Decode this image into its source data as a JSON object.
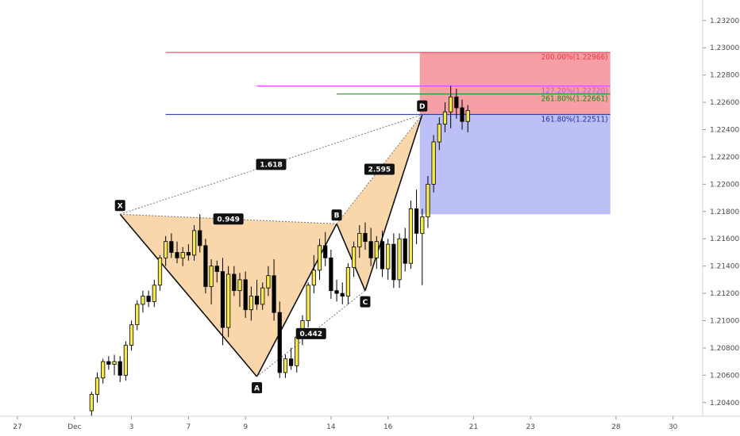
{
  "chart_data": {
    "type": "candlestick",
    "title": "",
    "y_axis": {
      "min": 1.203,
      "max": 1.2335,
      "ticks": [
        "1.23200",
        "1.23000",
        "1.22800",
        "1.22600",
        "1.22400",
        "1.22200",
        "1.22000",
        "1.21800",
        "1.21600",
        "1.21400",
        "1.21200",
        "1.21000",
        "1.20800",
        "1.20600",
        "1.20400"
      ]
    },
    "x_axis": {
      "ticks": [
        {
          "label": "27",
          "slot": 1
        },
        {
          "label": "Dec",
          "slot": 11
        },
        {
          "label": "3",
          "slot": 21
        },
        {
          "label": "7",
          "slot": 31
        },
        {
          "label": "9",
          "slot": 41
        },
        {
          "label": "14",
          "slot": 56
        },
        {
          "label": "16",
          "slot": 66
        },
        {
          "label": "21",
          "slot": 81
        },
        {
          "label": "23",
          "slot": 91
        },
        {
          "label": "28",
          "slot": 106
        },
        {
          "label": "30",
          "slot": 116
        }
      ]
    },
    "candles_start_slot": 14,
    "candles": [
      [
        1.2034,
        1.2048,
        1.203,
        1.2046
      ],
      [
        1.2046,
        1.2062,
        1.204,
        1.2058
      ],
      [
        1.2058,
        1.2072,
        1.2054,
        1.207
      ],
      [
        1.207,
        1.2074,
        1.2064,
        1.2068
      ],
      [
        1.2068,
        1.2075,
        1.206,
        1.207
      ],
      [
        1.207,
        1.2074,
        1.2055,
        1.206
      ],
      [
        1.206,
        1.2085,
        1.2056,
        1.2082
      ],
      [
        1.2082,
        1.21,
        1.2078,
        1.2097
      ],
      [
        1.2097,
        1.2115,
        1.2093,
        1.2112
      ],
      [
        1.2112,
        1.2122,
        1.2106,
        1.2118
      ],
      [
        1.2118,
        1.2122,
        1.211,
        1.2114
      ],
      [
        1.2114,
        1.213,
        1.211,
        1.2126
      ],
      [
        1.2126,
        1.2148,
        1.2122,
        1.2146
      ],
      [
        1.2146,
        1.2162,
        1.214,
        1.2158
      ],
      [
        1.2158,
        1.2164,
        1.2146,
        1.215
      ],
      [
        1.215,
        1.2158,
        1.2142,
        1.2146
      ],
      [
        1.2146,
        1.2154,
        1.214,
        1.215
      ],
      [
        1.215,
        1.2156,
        1.2144,
        1.2148
      ],
      [
        1.2148,
        1.217,
        1.2144,
        1.2166
      ],
      [
        1.2166,
        1.2178,
        1.215,
        1.2155
      ],
      [
        1.2155,
        1.216,
        1.212,
        1.2125
      ],
      [
        1.2125,
        1.2145,
        1.2112,
        1.214
      ],
      [
        1.214,
        1.2144,
        1.2128,
        1.2136
      ],
      [
        1.2136,
        1.2146,
        1.2082,
        1.2095
      ],
      [
        1.2095,
        1.214,
        1.2088,
        1.2134
      ],
      [
        1.2134,
        1.214,
        1.2118,
        1.2122
      ],
      [
        1.2122,
        1.2135,
        1.211,
        1.213
      ],
      [
        1.213,
        1.2136,
        1.2102,
        1.2108
      ],
      [
        1.2108,
        1.2125,
        1.21,
        1.2118
      ],
      [
        1.2118,
        1.213,
        1.2108,
        1.2112
      ],
      [
        1.2112,
        1.2128,
        1.2108,
        1.2124
      ],
      [
        1.2124,
        1.214,
        1.2118,
        1.2133
      ],
      [
        1.2133,
        1.2145,
        1.21,
        1.2106
      ],
      [
        1.2106,
        1.2114,
        1.2058,
        1.2062
      ],
      [
        1.2062,
        1.2075,
        1.2058,
        1.2072
      ],
      [
        1.2072,
        1.208,
        1.2064,
        1.2067
      ],
      [
        1.2067,
        1.2092,
        1.2062,
        1.2088
      ],
      [
        1.2088,
        1.2104,
        1.2082,
        1.21
      ],
      [
        1.21,
        1.2128,
        1.2095,
        1.2126
      ],
      [
        1.2126,
        1.2148,
        1.212,
        1.2137
      ],
      [
        1.2137,
        1.216,
        1.213,
        1.2155
      ],
      [
        1.2155,
        1.2165,
        1.214,
        1.2146
      ],
      [
        1.2146,
        1.2152,
        1.2116,
        1.2122
      ],
      [
        1.2122,
        1.213,
        1.2114,
        1.212
      ],
      [
        1.212,
        1.2128,
        1.2112,
        1.2118
      ],
      [
        1.2118,
        1.2142,
        1.2112,
        1.2139
      ],
      [
        1.2139,
        1.2158,
        1.2132,
        1.2154
      ],
      [
        1.2154,
        1.217,
        1.2146,
        1.2164
      ],
      [
        1.2164,
        1.2172,
        1.2152,
        1.2158
      ],
      [
        1.2158,
        1.2168,
        1.214,
        1.2146
      ],
      [
        1.2146,
        1.2162,
        1.2138,
        1.2158
      ],
      [
        1.2158,
        1.2166,
        1.2132,
        1.2138
      ],
      [
        1.2138,
        1.216,
        1.213,
        1.2156
      ],
      [
        1.2156,
        1.2164,
        1.2124,
        1.213
      ],
      [
        1.213,
        1.2164,
        1.2124,
        1.216
      ],
      [
        1.216,
        1.2168,
        1.2136,
        1.2142
      ],
      [
        1.2142,
        1.2188,
        1.2138,
        1.2182
      ],
      [
        1.2182,
        1.2196,
        1.2156,
        1.2164
      ],
      [
        1.2164,
        1.2182,
        1.2126,
        1.2176
      ],
      [
        1.2176,
        1.2206,
        1.2168,
        1.22
      ],
      [
        1.22,
        1.2236,
        1.2194,
        1.2231
      ],
      [
        1.2231,
        1.2249,
        1.2225,
        1.2244
      ],
      [
        1.2244,
        1.226,
        1.2238,
        1.2253
      ],
      [
        1.2253,
        1.2272,
        1.2241,
        1.2264
      ],
      [
        1.2264,
        1.227,
        1.2248,
        1.2256
      ],
      [
        1.2256,
        1.2262,
        1.224,
        1.2246
      ],
      [
        1.2246,
        1.2258,
        1.2238,
        1.2254
      ]
    ],
    "pattern": {
      "points": [
        {
          "label": "X",
          "slot": 19,
          "price": 1.2178
        },
        {
          "label": "A",
          "slot": 43,
          "price": 1.2059
        },
        {
          "label": "B",
          "slot": 57,
          "price": 1.2171
        },
        {
          "label": "C",
          "slot": 62,
          "price": 1.2122
        },
        {
          "label": "D",
          "slot": 72,
          "price": 1.2251
        }
      ],
      "ratios": [
        {
          "value": "0.949",
          "from": "X",
          "to": "B"
        },
        {
          "value": "0.442",
          "from": "A",
          "to": "C"
        },
        {
          "value": "2.595",
          "from": "B",
          "to": "D"
        },
        {
          "value": "1.618",
          "from": "X",
          "to": "D"
        }
      ]
    },
    "levels": [
      {
        "label": "200.00%(1.22966)",
        "price": 1.22966,
        "color": "#f23645",
        "start_slot": 27
      },
      {
        "label": "127.20%(1.22720)",
        "price": 1.2272,
        "color": "#e040fb",
        "start_slot": 43
      },
      {
        "label": "261.80%(1.22661)",
        "price": 1.22661,
        "color": "#138808",
        "start_slot": 57
      },
      {
        "label": "161.80%(1.22511)",
        "price": 1.22511,
        "color": "#1f2e9e",
        "start_slot": 27
      }
    ],
    "position": {
      "entry": 1.22511,
      "stop": 1.22966,
      "target": 1.2178,
      "start_slot": 72,
      "end_slot": 105
    },
    "colors": {
      "bull_body": "#f2e94e",
      "bear_body": "#000000",
      "wick": "#000000",
      "pattern_fill": "#f7c98f",
      "stop_zone": "#f59aa0",
      "target_zone": "#b8bdf6"
    }
  }
}
